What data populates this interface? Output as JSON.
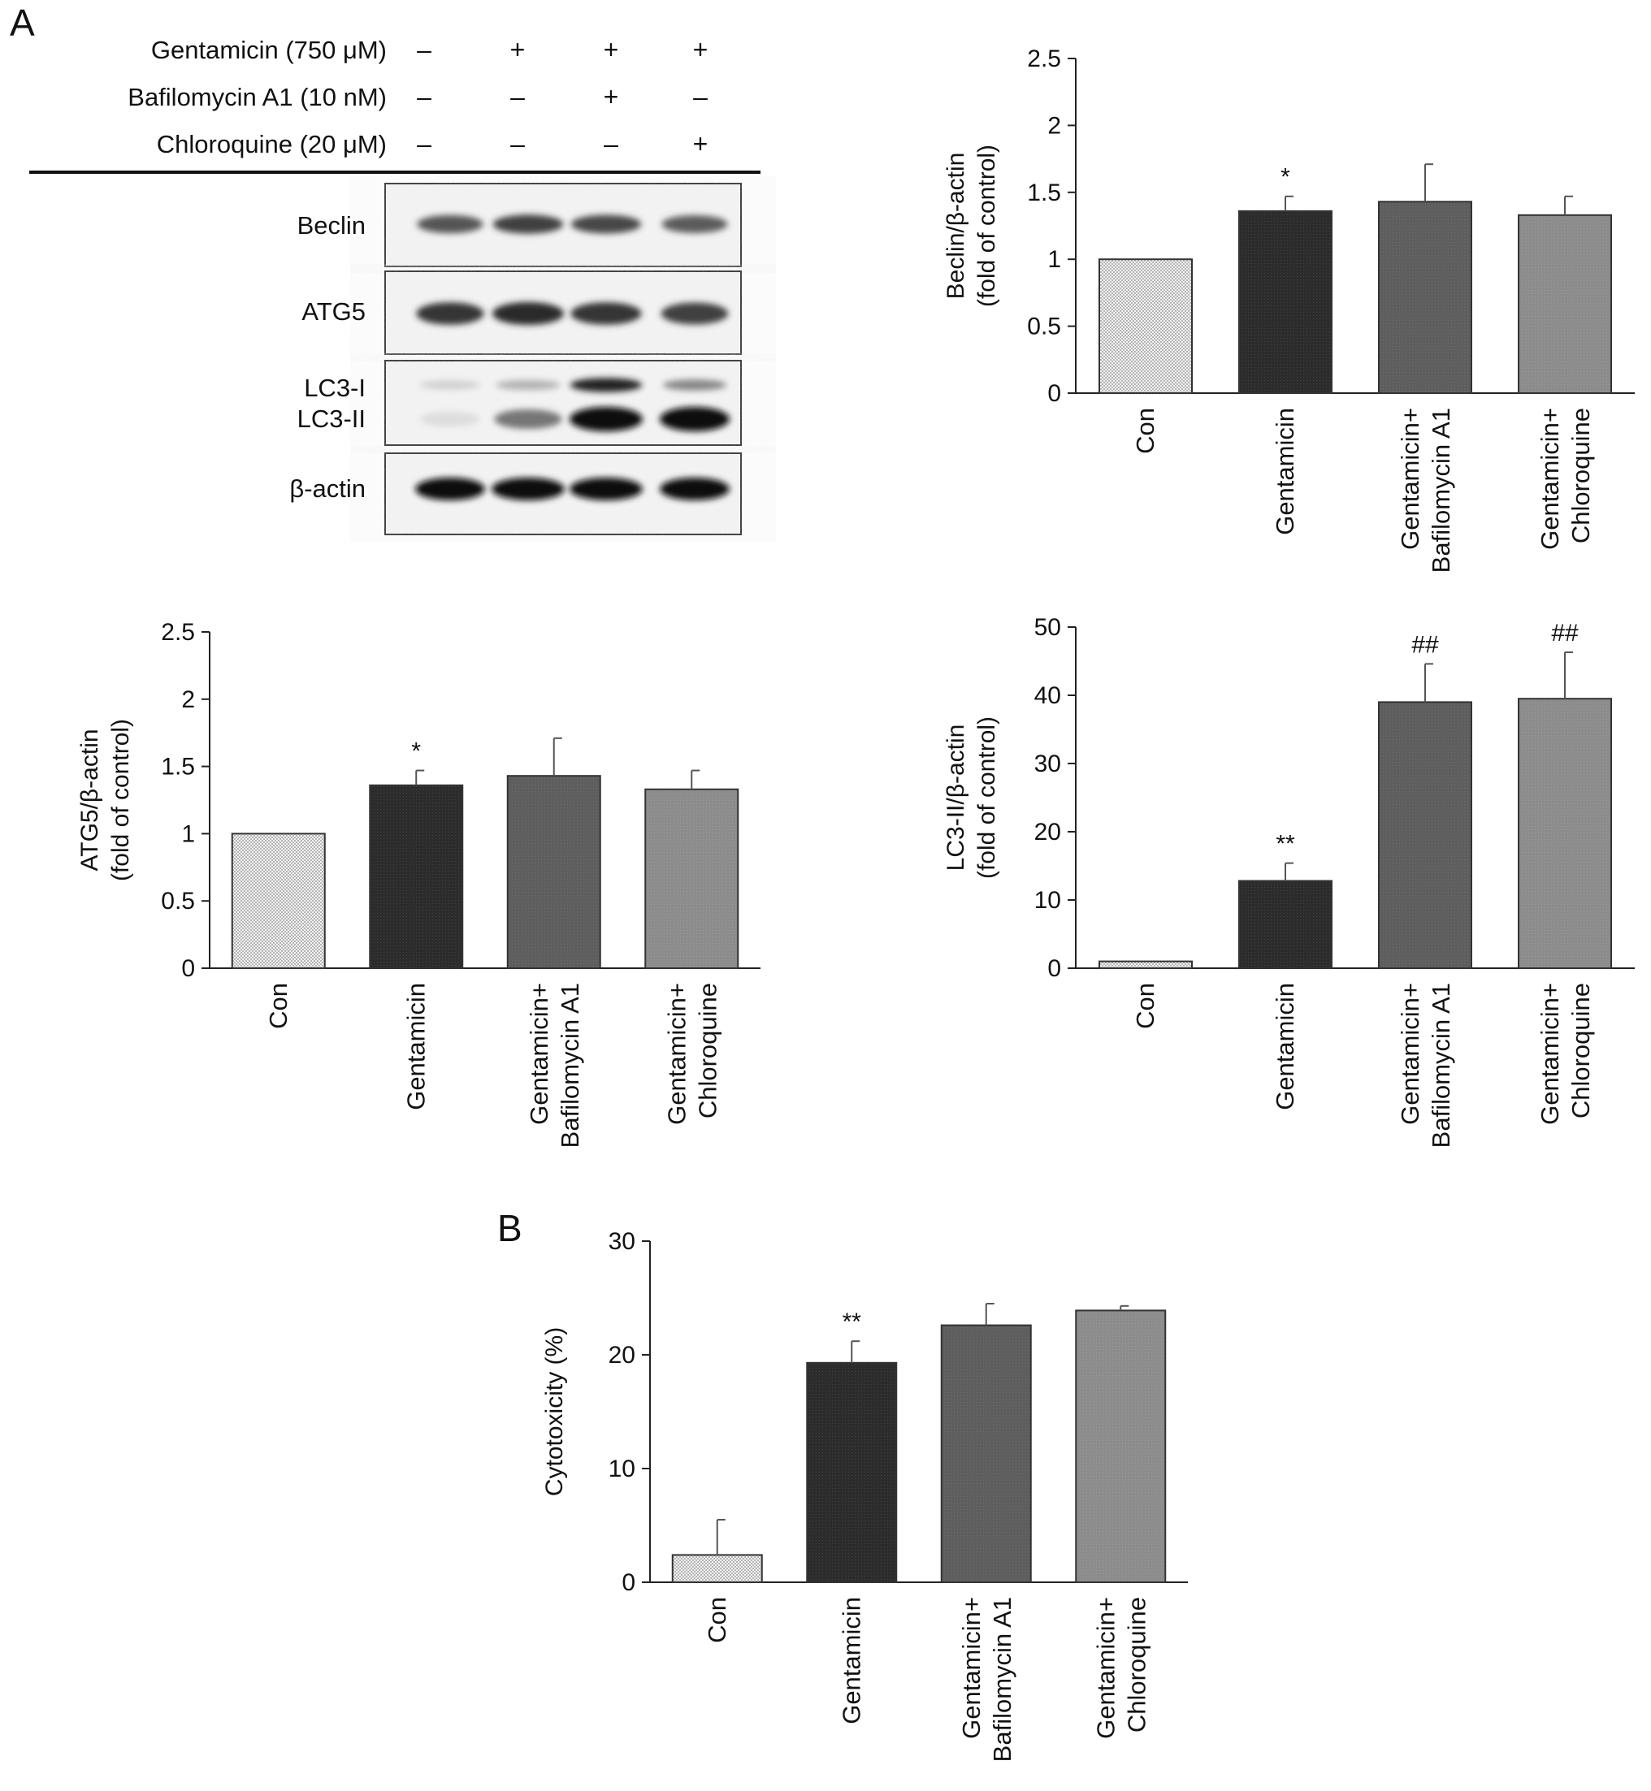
{
  "panels": {
    "a_label": "A",
    "b_label": "B"
  },
  "blot": {
    "treatments": [
      {
        "label": "Gentamicin (750 μM)",
        "signs": [
          "–",
          "+",
          "+",
          "+"
        ]
      },
      {
        "label": "Bafilomycin A1 (10 nM)",
        "signs": [
          "–",
          "–",
          "+",
          "–"
        ]
      },
      {
        "label": "Chloroquine (20 μM)",
        "signs": [
          "–",
          "–",
          "–",
          "+"
        ]
      }
    ],
    "bands": [
      {
        "label": "Beclin",
        "intensity": [
          0.65,
          0.75,
          0.72,
          0.62
        ]
      },
      {
        "label": "ATG5",
        "intensity": [
          0.8,
          0.85,
          0.8,
          0.75
        ]
      },
      {
        "label": "LC3-I",
        "intensity": [
          0.08,
          0.22,
          0.9,
          0.42
        ]
      },
      {
        "label": "LC3-II",
        "intensity": [
          0.02,
          0.5,
          1.0,
          1.0
        ]
      },
      {
        "label": "β-actin",
        "intensity": [
          0.98,
          0.98,
          0.98,
          0.98
        ]
      }
    ]
  },
  "colors": {
    "con": "#e2e2e2",
    "gentamicin": "#2e2e2e",
    "bafilomycin": "#5f5f5f",
    "chloroquine": "#8f8f8f",
    "axis": "#222222"
  },
  "chart_data": [
    {
      "id": "beclin",
      "type": "bar",
      "categories": [
        "Con",
        "Gentamicin",
        "Gentamicin+\nBafilomycin A1",
        "Gentamicin+\nChloroquine"
      ],
      "values": [
        1.0,
        1.36,
        1.43,
        1.33
      ],
      "errors": [
        0,
        0.11,
        0.28,
        0.14
      ],
      "significance": [
        "",
        "*",
        "",
        ""
      ],
      "ylabel": "Beclin/β-actin\n(fold of control)",
      "ylim": [
        0,
        2.5
      ],
      "yticks": [
        "0",
        "0.5",
        "1",
        "1.5",
        "2",
        "2.5"
      ]
    },
    {
      "id": "atg5",
      "type": "bar",
      "categories": [
        "Con",
        "Gentamicin",
        "Gentamicin+\nBafilomycin A1",
        "Gentamicin+\nChloroquine"
      ],
      "values": [
        1.0,
        1.36,
        1.43,
        1.33
      ],
      "errors": [
        0,
        0.11,
        0.28,
        0.14
      ],
      "significance": [
        "",
        "*",
        "",
        ""
      ],
      "ylabel": "ATG5/β-actin\n(fold of control)",
      "ylim": [
        0,
        2.5
      ],
      "yticks": [
        "0",
        "0.5",
        "1",
        "1.5",
        "2",
        "2.5"
      ]
    },
    {
      "id": "lc3",
      "type": "bar",
      "categories": [
        "Con",
        "Gentamicin",
        "Gentamicin+\nBafilomycin A1",
        "Gentamicin+\nChloroquine"
      ],
      "values": [
        1.0,
        12.8,
        39.0,
        39.5
      ],
      "errors": [
        0,
        2.6,
        5.6,
        6.8
      ],
      "significance": [
        "",
        "**",
        "##",
        "##"
      ],
      "ylabel": "LC3-II/β-actin\n(fold of control)",
      "ylim": [
        0,
        50
      ],
      "yticks": [
        "0",
        "10",
        "20",
        "30",
        "40",
        "50"
      ]
    },
    {
      "id": "cytotox",
      "type": "bar",
      "categories": [
        "Con",
        "Gentamicin",
        "Gentamicin+\nBafilomycin A1",
        "Gentamicin+\nChloroquine"
      ],
      "values": [
        2.4,
        19.3,
        22.6,
        23.9
      ],
      "errors": [
        3.1,
        1.9,
        1.9,
        0.4
      ],
      "significance": [
        "",
        "**",
        "",
        ""
      ],
      "ylabel": "Cytotoxicity (%)",
      "ylim": [
        0,
        30
      ],
      "yticks": [
        "0",
        "10",
        "20",
        "30"
      ]
    }
  ]
}
